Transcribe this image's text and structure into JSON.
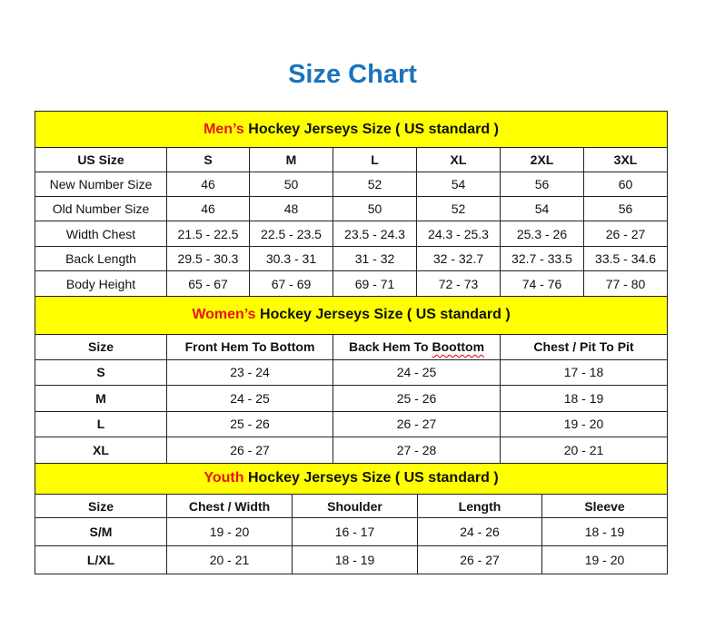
{
  "title": "Size Chart",
  "colors": {
    "title": "#1b73be",
    "band": "#ffff00",
    "accent_red": "#e8141b"
  },
  "men": {
    "band_prefix": "Men’s",
    "band_rest": " Hockey Jerseys Size ( US standard )",
    "headers": [
      "US Size",
      "S",
      "M",
      "L",
      "XL",
      "2XL",
      "3XL"
    ],
    "rows": [
      [
        "New Number Size",
        "46",
        "50",
        "52",
        "54",
        "56",
        "60"
      ],
      [
        "Old Number Size",
        "46",
        "48",
        "50",
        "52",
        "54",
        "56"
      ],
      [
        "Width Chest",
        "21.5 - 22.5",
        "22.5 - 23.5",
        "23.5 - 24.3",
        "24.3 - 25.3",
        "25.3 - 26",
        "26 - 27"
      ],
      [
        "Back Length",
        "29.5 - 30.3",
        "30.3 - 31",
        "31 - 32",
        "32 - 32.7",
        "32.7 - 33.5",
        "33.5 - 34.6"
      ],
      [
        "Body Height",
        "65 - 67",
        "67 - 69",
        "69 - 71",
        "72 - 73",
        "74 - 76",
        "77 - 80"
      ]
    ]
  },
  "women": {
    "band_prefix": "Women’s",
    "band_rest": " Hockey Jerseys Size ( US standard )",
    "headers": [
      "Size",
      "Front Hem To Bottom",
      "Back Hem To Boottom",
      "Chest / Pit To Pit"
    ],
    "rows": [
      [
        "S",
        "23 - 24",
        "24 - 25",
        "17 - 18"
      ],
      [
        "M",
        "24 - 25",
        "25 - 26",
        "18 - 19"
      ],
      [
        "L",
        "25 - 26",
        "26 - 27",
        "19 - 20"
      ],
      [
        "XL",
        "26 - 27",
        "27 - 28",
        "20 - 21"
      ]
    ]
  },
  "youth": {
    "band_prefix": "Youth",
    "band_rest": " Hockey Jerseys Size ( US standard )",
    "headers": [
      "Size",
      "Chest / Width",
      "Shoulder",
      "Length",
      "Sleeve"
    ],
    "rows": [
      [
        "S/M",
        "19 - 20",
        "16 - 17",
        "24 - 26",
        "18 - 19"
      ],
      [
        "L/XL",
        "20 - 21",
        "18 - 19",
        "26 - 27",
        "19 - 20"
      ]
    ]
  }
}
